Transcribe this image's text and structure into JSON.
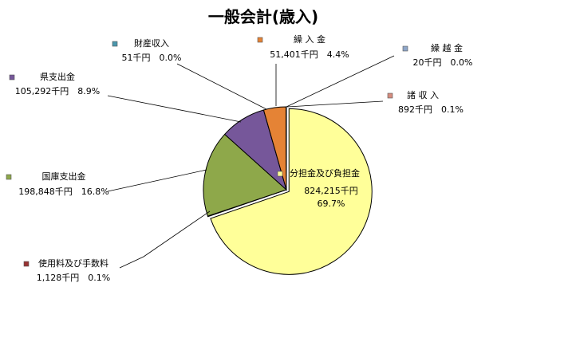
{
  "chart_data": {
    "type": "pie",
    "title": "一般会計(歳入)",
    "unit": "千円",
    "slices": [
      {
        "name": "分担金及び負担金",
        "value": 824215,
        "value_label": "824,215千円",
        "percent_label": "69.7%",
        "color": "#ffff99"
      },
      {
        "name": "使用料及び手数料",
        "value": 1128,
        "value_label": "1,128千円",
        "percent_label": "0.1%",
        "color": "#993333"
      },
      {
        "name": "国庫支出金",
        "value": 198848,
        "value_label": "198,848千円",
        "percent_label": "16.8%",
        "color": "#8ea84a"
      },
      {
        "name": "県支出金",
        "value": 105292,
        "value_label": "105,292千円",
        "percent_label": "8.9%",
        "color": "#76579a"
      },
      {
        "name": "財産収入",
        "value": 51,
        "value_label": "51千円",
        "percent_label": "0.0%",
        "color": "#4a97ad"
      },
      {
        "name": "繰 入 金",
        "value": 51401,
        "value_label": "51,401千円",
        "percent_label": "4.4%",
        "color": "#e58335"
      },
      {
        "name": "繰 越 金",
        "value": 20,
        "value_label": "20千円",
        "percent_label": "0.0%",
        "color": "#8ea6c9"
      },
      {
        "name": "諸 収 入",
        "value": 892,
        "value_label": "892千円",
        "percent_label": "0.1%",
        "color": "#d58d7f"
      }
    ]
  }
}
